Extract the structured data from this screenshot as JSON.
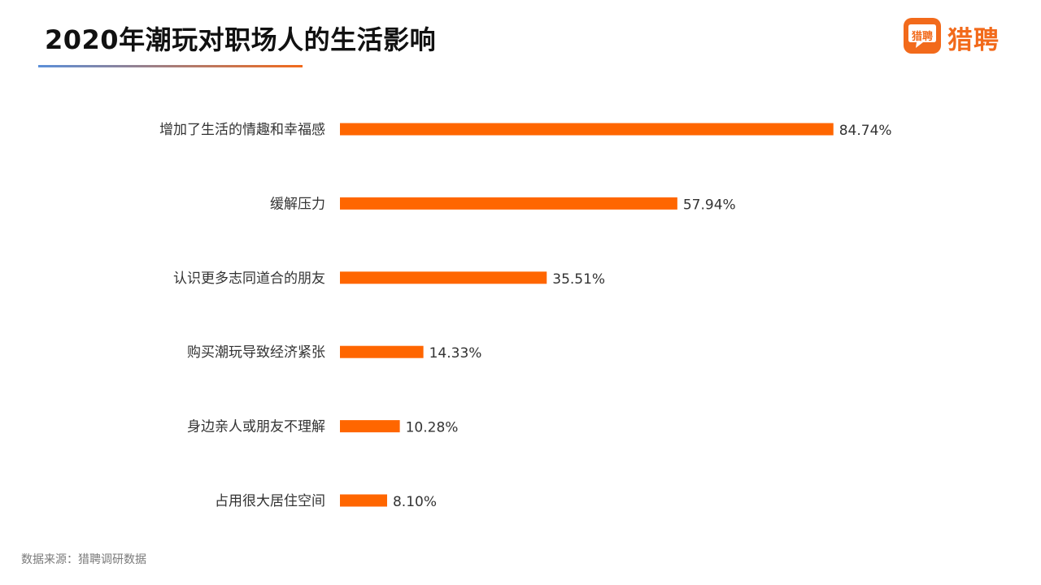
{
  "title": "2020年潮玩对职场人的生活影响",
  "logo": {
    "badge_text": "猎聘",
    "brand_text": "猎聘"
  },
  "source": "数据来源：猎聘调研数据",
  "colors": {
    "bar": "#FF6600",
    "brand": "#F26A1B",
    "title": "#111111",
    "label": "#333333"
  },
  "chart_data": {
    "type": "bar",
    "orientation": "horizontal",
    "title": "",
    "xlabel": "",
    "ylabel": "",
    "xlim": [
      0,
      100
    ],
    "grid": false,
    "legend": "none",
    "categories": [
      "增加了生活的情趣和幸福感",
      "缓解压力",
      "认识更多志同道合的朋友",
      "购买潮玩导致经济紧张",
      "身边亲人或朋友不理解",
      "占用很大居住空间"
    ],
    "values": [
      84.74,
      57.94,
      35.51,
      14.33,
      10.28,
      8.1
    ],
    "value_labels": [
      "84.74%",
      "57.94%",
      "35.51%",
      "14.33%",
      "10.28%",
      "8.10%"
    ]
  }
}
